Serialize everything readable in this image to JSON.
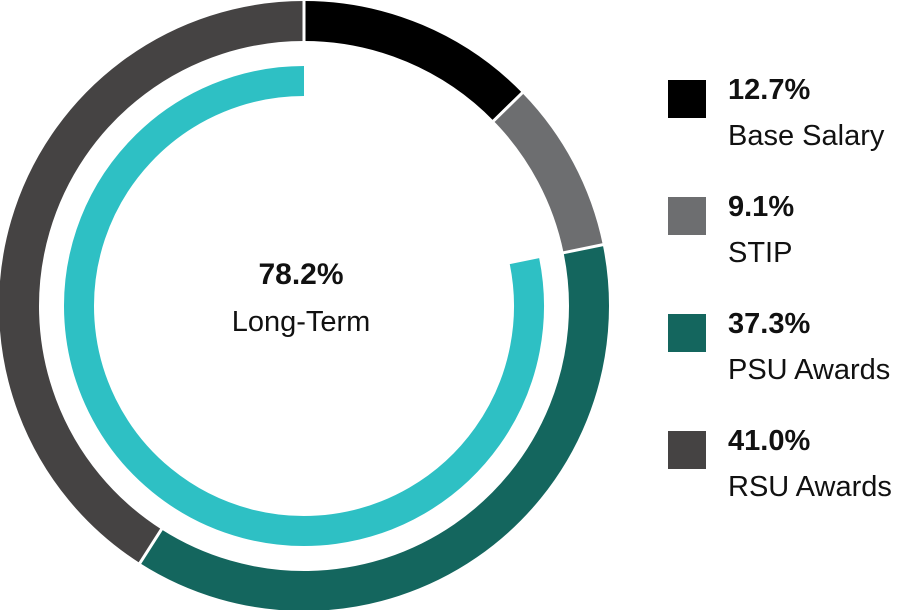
{
  "chart_data": {
    "type": "pie",
    "variant": "nested-donut",
    "center": {
      "value": "78.2%",
      "label": "Long-Term"
    },
    "outer_ring": [
      {
        "name": "Base Salary",
        "value": 12.7,
        "value_label": "12.7%",
        "color": "#000000"
      },
      {
        "name": "STIP",
        "value": 9.1,
        "value_label": "9.1%",
        "color": "#6d6e70"
      },
      {
        "name": "PSU Awards",
        "value": 37.3,
        "value_label": "37.3%",
        "color": "#14665e"
      },
      {
        "name": "RSU Awards",
        "value": 41.0,
        "value_label": "41.0%",
        "color": "#454343"
      }
    ],
    "inner_ring": {
      "value": 78.2,
      "color": "#2ec0c4"
    },
    "legend_position": "right"
  }
}
